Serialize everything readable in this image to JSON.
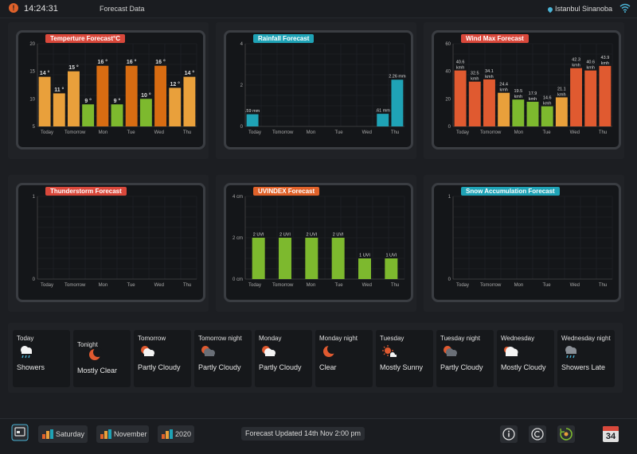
{
  "header": {
    "alert_badge": "!",
    "time": "14:24:31",
    "title": "Forecast Data",
    "location": "Istanbul Sinanoba"
  },
  "days": [
    "Today",
    "Tomorrow",
    "Mon",
    "Tue",
    "Wed",
    "Thu"
  ],
  "colors": {
    "orange": "#e9a03b",
    "dark_orange": "#d86c12",
    "green": "#7db92e",
    "teal": "#1fa3b6",
    "red_orange": "#e05a30",
    "title_red": "#d9483b",
    "title_teal": "#1fa3b6",
    "title_orange": "#e0622a"
  },
  "chart_data": [
    {
      "id": "temperature",
      "type": "bar",
      "title": "Temperture Forecast°C",
      "ylim": [
        5,
        20
      ],
      "yticks": [
        5,
        10,
        15,
        20
      ],
      "values": [
        14,
        11,
        15,
        9,
        16,
        9,
        16,
        10,
        16,
        12,
        14
      ],
      "labels": [
        "14 °",
        "11 °",
        "15 °",
        "9 °",
        "16 °",
        "9 °",
        "16 °",
        "10 °",
        "16 °",
        "12 °",
        "14 °"
      ],
      "colors": [
        "orange",
        "orange",
        "orange",
        "green",
        "dark_orange",
        "green",
        "dark_orange",
        "green",
        "dark_orange",
        "orange",
        "orange"
      ]
    },
    {
      "id": "rainfall",
      "type": "bar",
      "title": "Rainfall Forecast",
      "ylim": [
        0,
        4
      ],
      "yticks": [
        0,
        2,
        4
      ],
      "values": [
        0.59,
        0,
        0,
        0,
        0,
        0,
        0,
        0,
        0,
        0.61,
        2.26
      ],
      "labels": [
        ".59 mm",
        "",
        "",
        "",
        "",
        "",
        "",
        "",
        "",
        ".61 mm",
        "2.26 mm"
      ],
      "colors": [
        "teal",
        "teal",
        "teal",
        "teal",
        "teal",
        "teal",
        "teal",
        "teal",
        "teal",
        "teal",
        "teal"
      ]
    },
    {
      "id": "wind",
      "type": "bar",
      "title": "Wind Max Forecast",
      "ylim": [
        0,
        60
      ],
      "yticks": [
        0,
        20,
        40,
        60
      ],
      "values": [
        40.6,
        32.5,
        34.1,
        24.4,
        19.5,
        17.9,
        14.6,
        21.1,
        42.3,
        40.6,
        43.9
      ],
      "labels": [
        "40.6 kmh",
        "32.5 kmh",
        "34.1 kmh",
        "24.4 kmh",
        "19.5 kmh",
        "17.9 kmh",
        "14.6 kmh",
        "21.1 kmh",
        "42.3 kmh",
        "40.6 kmh",
        "43.9 kmh"
      ],
      "colors": [
        "red_orange",
        "red_orange",
        "red_orange",
        "orange",
        "green",
        "green",
        "green",
        "orange",
        "red_orange",
        "red_orange",
        "red_orange"
      ]
    },
    {
      "id": "thunderstorm",
      "type": "bar",
      "title": "Thunderstorm Forecast",
      "ylim": [
        0,
        1
      ],
      "yticks": [
        0,
        1
      ],
      "values": [],
      "labels": [],
      "colors": []
    },
    {
      "id": "uvindex",
      "type": "bar",
      "title": "UVINDEX Forecast",
      "ylim": [
        0,
        4
      ],
      "yticks": [
        0,
        2,
        4
      ],
      "ytick_labels": [
        "0 cm",
        "2 cm",
        "4 cm"
      ],
      "values": [
        2,
        2,
        2,
        2,
        1,
        1
      ],
      "labels": [
        "2 UVI",
        "2 UVI",
        "2 UVI",
        "2 UVI",
        "1 UVI",
        "1 UVI"
      ],
      "colors": [
        "green",
        "green",
        "green",
        "green",
        "green",
        "green"
      ]
    },
    {
      "id": "snow",
      "type": "bar",
      "title": "Snow Accumulation Forecast",
      "ylim": [
        0,
        1
      ],
      "yticks": [
        0,
        1
      ],
      "values": [],
      "labels": [],
      "colors": []
    }
  ],
  "forecast": [
    {
      "day": "Today",
      "condition": "Showers",
      "icon": "showers-icon"
    },
    {
      "day": "Tonight",
      "condition": "Mostly Clear",
      "icon": "moon-icon"
    },
    {
      "day": "Tomorrow",
      "condition": "Partly Cloudy",
      "icon": "partly-cloudy-day-icon"
    },
    {
      "day": "Tomorrow night",
      "condition": "Partly Cloudy",
      "icon": "partly-cloudy-night-icon"
    },
    {
      "day": "Monday",
      "condition": "Partly Cloudy",
      "icon": "partly-cloudy-day-icon"
    },
    {
      "day": "Monday night",
      "condition": "Clear",
      "icon": "moon-icon"
    },
    {
      "day": "Tuesday",
      "condition": "Mostly Sunny",
      "icon": "sunny-icon"
    },
    {
      "day": "Tuesday night",
      "condition": "Partly Cloudy",
      "icon": "partly-cloudy-night-icon"
    },
    {
      "day": "Wednesday",
      "condition": "Mostly Cloudy",
      "icon": "mostly-cloudy-icon"
    },
    {
      "day": "Wednesday night",
      "condition": "Showers Late",
      "icon": "showers-night-icon"
    }
  ],
  "footer": {
    "day_button": "Saturday",
    "month_button": "November",
    "year_button": "2020",
    "status": "Forecast Updated 14th Nov 2:00 pm",
    "calendar_day": "34"
  }
}
